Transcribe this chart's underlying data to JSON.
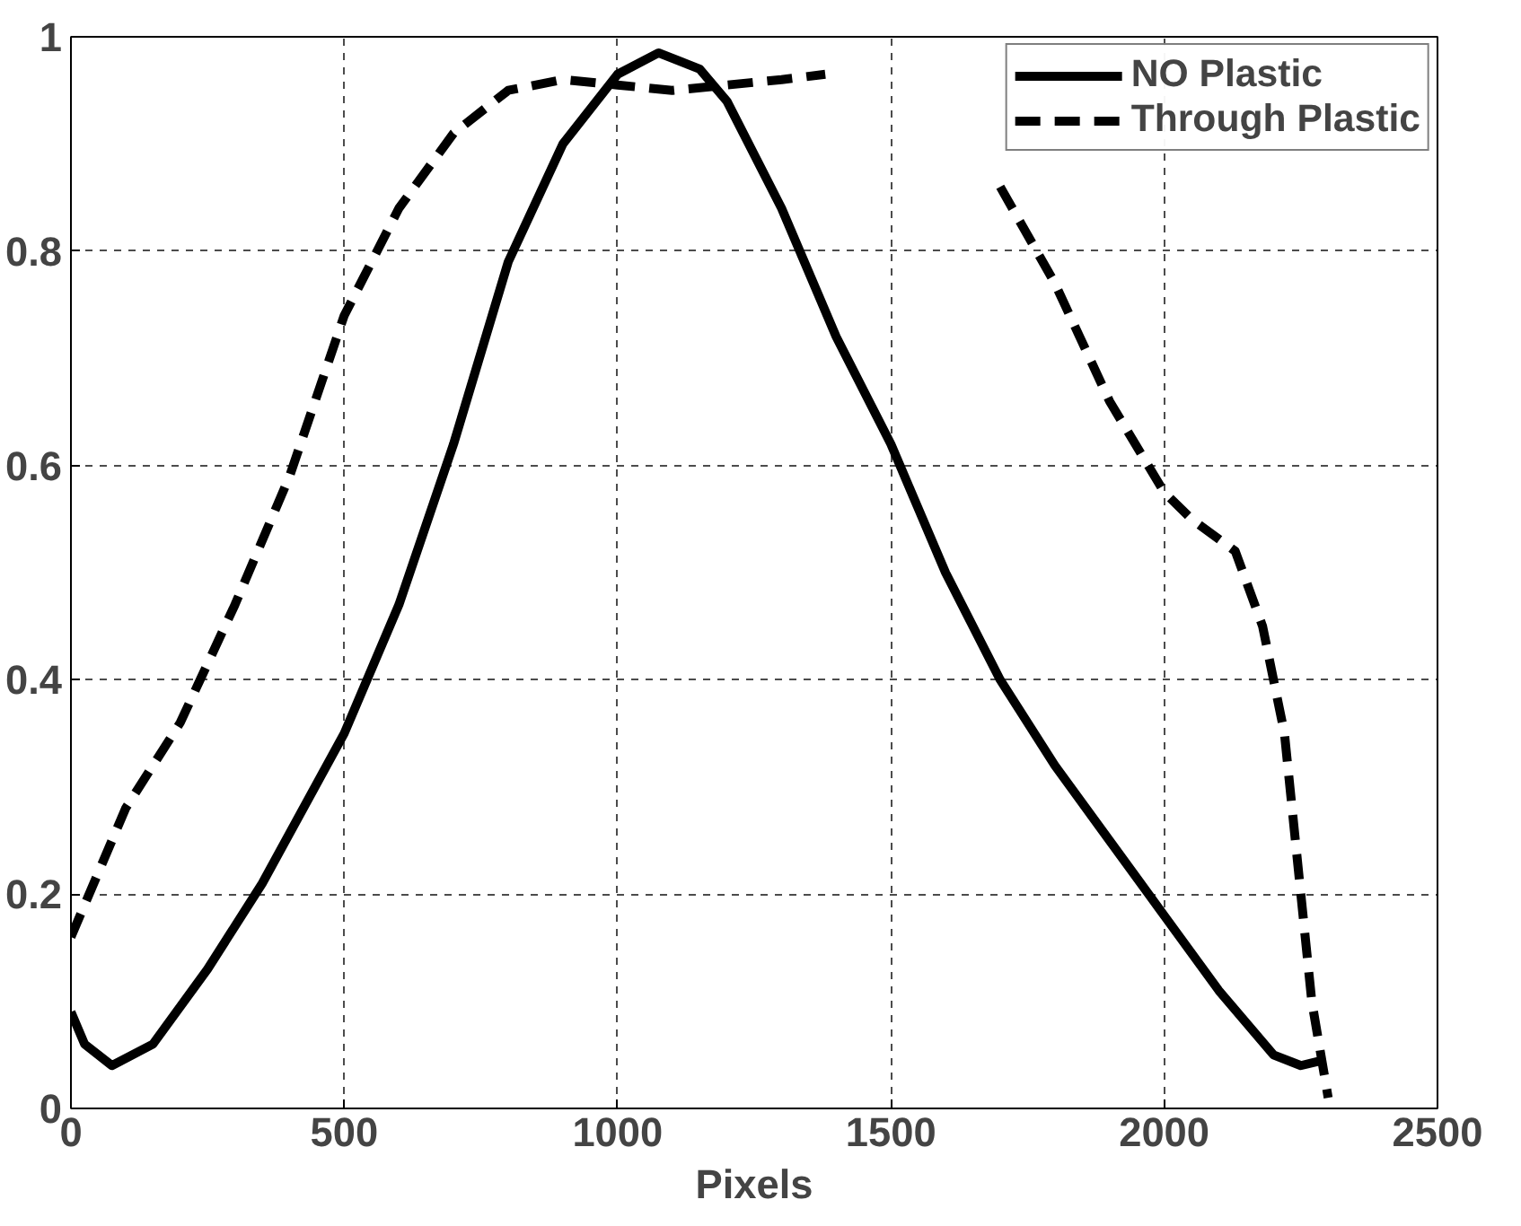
{
  "chart_data": {
    "type": "line",
    "xlabel": "Pixels",
    "xlim": [
      0,
      2500
    ],
    "ylim": [
      0,
      1
    ],
    "xticks": [
      0,
      500,
      1000,
      1500,
      2000,
      2500
    ],
    "yticks": [
      0,
      0.2,
      0.4,
      0.6,
      0.8,
      1
    ],
    "grid": true,
    "legend": "top right",
    "series": [
      {
        "name": "NO Plastic",
        "color": "#000000",
        "line_style": "solid",
        "x": [
          0,
          25,
          75,
          150,
          250,
          350,
          500,
          600,
          700,
          800,
          900,
          1000,
          1075,
          1150,
          1200,
          1300,
          1400,
          1500,
          1600,
          1700,
          1800,
          1900,
          2000,
          2100,
          2200,
          2250,
          2290
        ],
        "values": [
          0.09,
          0.06,
          0.04,
          0.06,
          0.13,
          0.21,
          0.35,
          0.47,
          0.62,
          0.79,
          0.9,
          0.965,
          0.985,
          0.97,
          0.94,
          0.84,
          0.72,
          0.62,
          0.5,
          0.4,
          0.32,
          0.25,
          0.18,
          0.11,
          0.05,
          0.04,
          0.045
        ]
      },
      {
        "name": "Through Plastic",
        "color": "#000000",
        "line_style": "dashed",
        "x": [
          0,
          50,
          100,
          200,
          300,
          400,
          500,
          600,
          700,
          800,
          900,
          1000,
          1100,
          1200,
          1300,
          1380,
          1500,
          1600,
          1700,
          1800,
          1900,
          2000,
          2050,
          2130,
          2180,
          2220,
          2250,
          2270,
          2300
        ],
        "values": [
          0.16,
          0.22,
          0.28,
          0.36,
          0.47,
          0.59,
          0.74,
          0.84,
          0.91,
          0.95,
          0.96,
          0.955,
          0.95,
          0.955,
          0.96,
          0.965,
          null,
          null,
          0.86,
          0.77,
          0.66,
          0.575,
          0.55,
          0.52,
          0.45,
          0.35,
          0.2,
          0.1,
          0.01
        ]
      }
    ]
  }
}
